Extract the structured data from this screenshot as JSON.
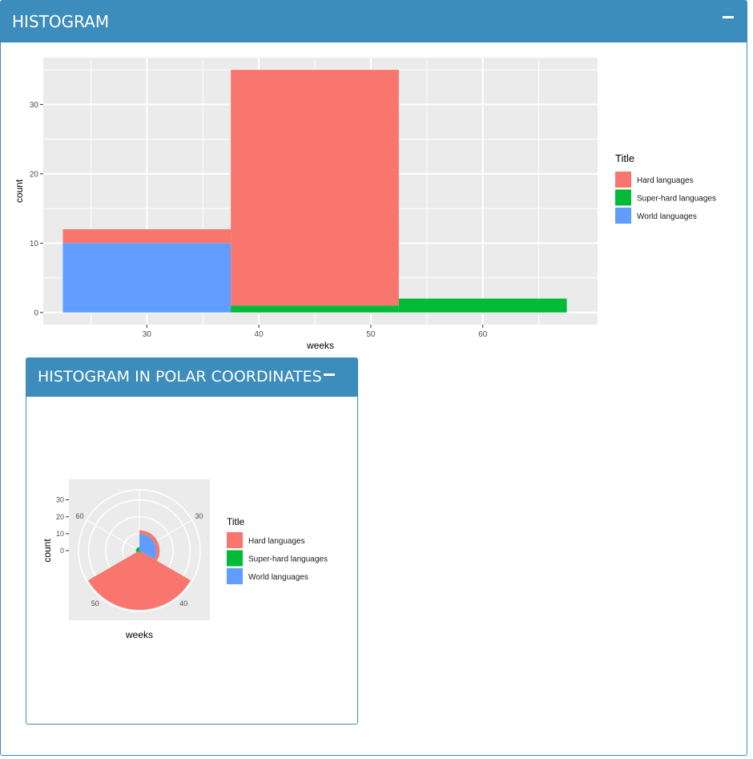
{
  "panels": {
    "histogram": {
      "title": "HISTOGRAM",
      "collapse_icon": "minus-icon"
    },
    "polar": {
      "title": "HISTOGRAM IN POLAR COORDINATES",
      "collapse_icon": "minus-icon"
    }
  },
  "colors": {
    "header": "#3c8dbc",
    "panel_bg": "#ebebeb",
    "grid": "#ffffff"
  },
  "chart_data": [
    {
      "type": "bar",
      "stacked": true,
      "xlabel": "weeks",
      "ylabel": "count",
      "x_ticks": [
        30,
        40,
        50,
        60
      ],
      "y_ticks": [
        0,
        10,
        20,
        30
      ],
      "xlim": [
        20.75,
        70.25
      ],
      "ylim": [
        -1.75,
        36.75
      ],
      "bins": [
        {
          "from": 22.5,
          "to": 37.5,
          "center": 30
        },
        {
          "from": 37.5,
          "to": 52.5,
          "center": 45
        },
        {
          "from": 52.5,
          "to": 67.5,
          "center": 60
        }
      ],
      "legend": {
        "title": "Title",
        "position": "right"
      },
      "series": [
        {
          "name": "World languages",
          "color": "#619cff",
          "values": [
            10,
            0,
            0
          ]
        },
        {
          "name": "Super-hard languages",
          "color": "#00ba38",
          "values": [
            0,
            1,
            2
          ]
        },
        {
          "name": "Hard languages",
          "color": "#f8766d",
          "values": [
            2,
            34,
            0
          ]
        }
      ]
    },
    {
      "type": "bar",
      "coordinates": "polar",
      "stacked": true,
      "xlabel": "weeks",
      "ylabel": "count",
      "angle_ticks": [
        30,
        40,
        50,
        60
      ],
      "radius_ticks": [
        0,
        10,
        20,
        30
      ],
      "legend": {
        "title": "Title",
        "position": "right"
      },
      "series": [
        {
          "name": "World languages",
          "color": "#619cff",
          "values": [
            10,
            0,
            0
          ]
        },
        {
          "name": "Super-hard languages",
          "color": "#00ba38",
          "values": [
            0,
            1,
            2
          ]
        },
        {
          "name": "Hard languages",
          "color": "#f8766d",
          "values": [
            2,
            34,
            0
          ]
        }
      ]
    }
  ]
}
